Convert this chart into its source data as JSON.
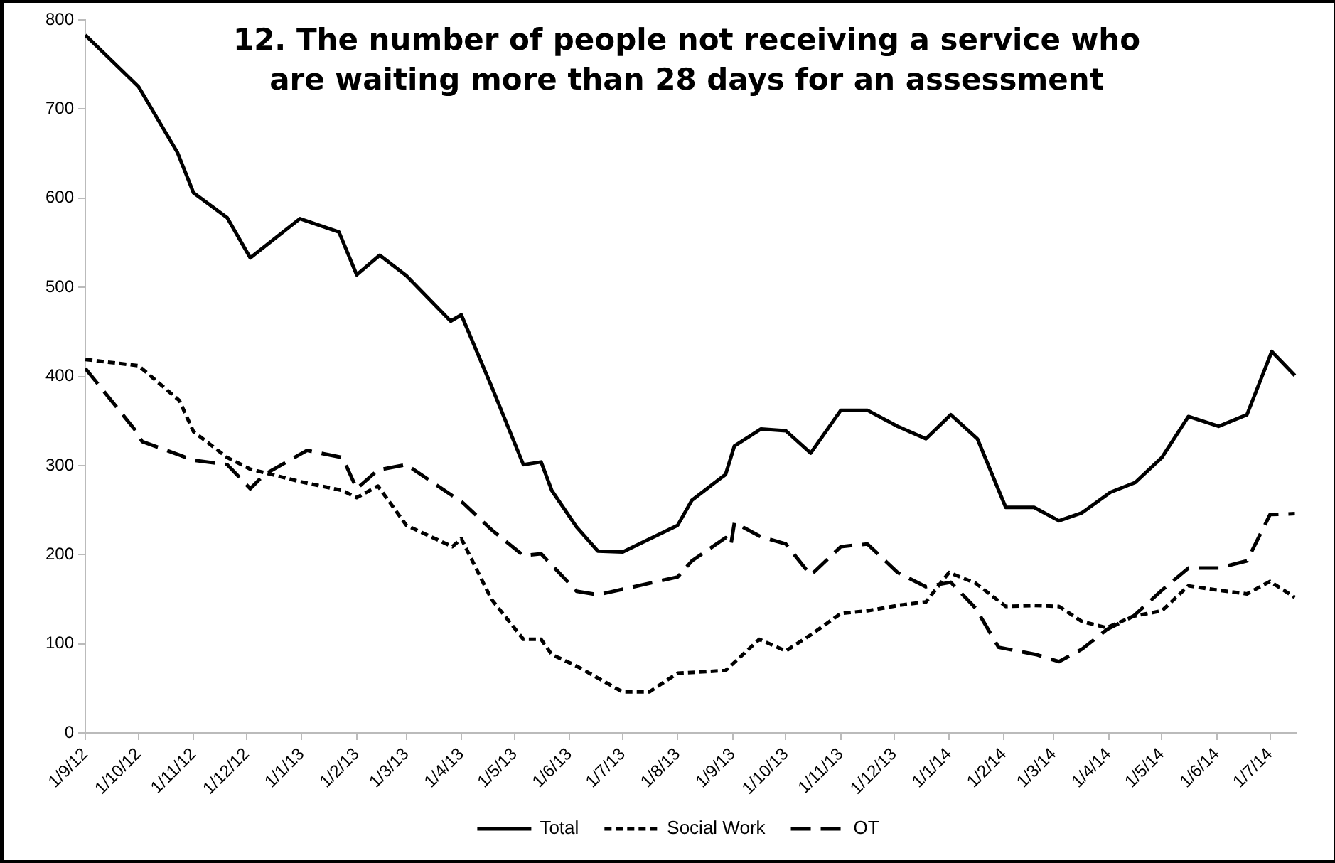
{
  "chart_data": {
    "type": "line",
    "title": "12. The number of people not receiving a service who are waiting more than 28 days for an assessment",
    "xlim": [
      "2012-09-01",
      "2014-07-16"
    ],
    "xticks": [
      {
        "value": "2012-09-01",
        "label": "1/9/12"
      },
      {
        "value": "2012-10-01",
        "label": "1/10/12"
      },
      {
        "value": "2012-11-01",
        "label": "1/11/12"
      },
      {
        "value": "2012-12-01",
        "label": "1/12/12"
      },
      {
        "value": "2013-01-01",
        "label": "1/1/13"
      },
      {
        "value": "2013-02-01",
        "label": "1/2/13"
      },
      {
        "value": "2013-03-01",
        "label": "1/3/13"
      },
      {
        "value": "2013-04-01",
        "label": "1/4/13"
      },
      {
        "value": "2013-05-01",
        "label": "1/5/13"
      },
      {
        "value": "2013-06-01",
        "label": "1/6/13"
      },
      {
        "value": "2013-07-01",
        "label": "1/7/13"
      },
      {
        "value": "2013-08-01",
        "label": "1/8/13"
      },
      {
        "value": "2013-09-01",
        "label": "1/9/13"
      },
      {
        "value": "2013-10-01",
        "label": "1/10/13"
      },
      {
        "value": "2013-11-01",
        "label": "1/11/13"
      },
      {
        "value": "2013-12-01",
        "label": "1/12/13"
      },
      {
        "value": "2014-01-01",
        "label": "1/1/14"
      },
      {
        "value": "2014-02-01",
        "label": "1/2/14"
      },
      {
        "value": "2014-03-01",
        "label": "1/3/14"
      },
      {
        "value": "2014-04-01",
        "label": "1/4/14"
      },
      {
        "value": "2014-05-01",
        "label": "1/5/14"
      },
      {
        "value": "2014-06-01",
        "label": "1/6/14"
      },
      {
        "value": "2014-07-01",
        "label": "1/7/14"
      }
    ],
    "ylim": [
      0,
      800
    ],
    "yticks": [
      0,
      100,
      200,
      300,
      400,
      500,
      600,
      700,
      800
    ],
    "grid": false,
    "legend": "bottom",
    "marker": "none",
    "series": [
      {
        "name": "Total",
        "color": "#000000",
        "line_style": "solid",
        "x": [
          "2012-09-01",
          "2012-10-01",
          "2012-10-23",
          "2012-11-01",
          "2012-11-20",
          "2012-12-03",
          "2012-12-31",
          "2013-01-22",
          "2013-02-01",
          "2013-02-14",
          "2013-03-01",
          "2013-03-26",
          "2013-04-01",
          "2013-04-18",
          "2013-05-06",
          "2013-05-16",
          "2013-05-22",
          "2013-06-05",
          "2013-06-17",
          "2013-07-01",
          "2013-08-01",
          "2013-08-09",
          "2013-08-28",
          "2013-09-02",
          "2013-09-17",
          "2013-10-01",
          "2013-10-15",
          "2013-11-01",
          "2013-11-16",
          "2013-12-03",
          "2013-12-19",
          "2014-01-02",
          "2014-01-17",
          "2014-02-02",
          "2014-02-18",
          "2014-03-04",
          "2014-03-17",
          "2014-04-02",
          "2014-04-16",
          "2014-05-01",
          "2014-05-16",
          "2014-06-02",
          "2014-06-18",
          "2014-07-02",
          "2014-07-15"
        ],
        "values": [
          783,
          725,
          651,
          606,
          578,
          533,
          577,
          562,
          514,
          536,
          513,
          462,
          469,
          389,
          301,
          304,
          272,
          231,
          204,
          203,
          233,
          261,
          290,
          322,
          341,
          339,
          314,
          362,
          362,
          344,
          330,
          357,
          330,
          253,
          253,
          238,
          247,
          270,
          281,
          309,
          355,
          344,
          357,
          428,
          401
        ]
      },
      {
        "name": "Social Work",
        "color": "#000000",
        "line_style": "dotted",
        "x": [
          "2012-09-01",
          "2012-10-01",
          "2012-10-24",
          "2012-11-01",
          "2012-11-20",
          "2012-12-03",
          "2012-12-31",
          "2013-01-24",
          "2013-02-01",
          "2013-02-13",
          "2013-03-01",
          "2013-03-27",
          "2013-04-01",
          "2013-04-18",
          "2013-05-06",
          "2013-05-16",
          "2013-05-22",
          "2013-06-05",
          "2013-07-01",
          "2013-07-16",
          "2013-08-01",
          "2013-08-28",
          "2013-09-16",
          "2013-10-01",
          "2013-10-15",
          "2013-11-01",
          "2013-11-16",
          "2013-12-03",
          "2013-12-19",
          "2014-01-01",
          "2014-01-16",
          "2014-02-02",
          "2014-02-18",
          "2014-03-04",
          "2014-03-17",
          "2014-03-31",
          "2014-04-15",
          "2014-05-01",
          "2014-05-16",
          "2014-06-02",
          "2014-06-18",
          "2014-07-01",
          "2014-07-15"
        ],
        "values": [
          419,
          412,
          373,
          338,
          309,
          296,
          282,
          272,
          264,
          277,
          233,
          209,
          218,
          150,
          105,
          105,
          88,
          75,
          46,
          46,
          67,
          70,
          105,
          92,
          110,
          134,
          137,
          143,
          147,
          180,
          168,
          142,
          143,
          142,
          125,
          118,
          131,
          137,
          165,
          160,
          156,
          170,
          152
        ]
      },
      {
        "name": "OT",
        "color": "#000000",
        "line_style": "dashed",
        "x": [
          "2012-09-01",
          "2012-09-29",
          "2012-10-03",
          "2012-11-01",
          "2012-11-20",
          "2012-12-03",
          "2012-12-11",
          "2013-01-04",
          "2013-01-24",
          "2013-02-01",
          "2013-02-13",
          "2013-03-01",
          "2013-04-02",
          "2013-04-18",
          "2013-05-06",
          "2013-05-16",
          "2013-06-05",
          "2013-06-17",
          "2013-08-01",
          "2013-08-09",
          "2013-08-28",
          "2013-08-31",
          "2013-09-02",
          "2013-09-17",
          "2013-10-01",
          "2013-10-15",
          "2013-11-01",
          "2013-11-16",
          "2013-12-03",
          "2013-12-19",
          "2014-01-02",
          "2014-01-16",
          "2014-01-29",
          "2014-02-19",
          "2014-03-04",
          "2014-03-17",
          "2014-03-31",
          "2014-04-15",
          "2014-05-01",
          "2014-05-16",
          "2014-06-02",
          "2014-06-18",
          "2014-07-01",
          "2014-07-15"
        ],
        "values": [
          409,
          340,
          327,
          306,
          301,
          274,
          290,
          317,
          309,
          274,
          295,
          301,
          258,
          228,
          199,
          201,
          159,
          155,
          175,
          193,
          219,
          211,
          236,
          220,
          212,
          177,
          209,
          212,
          180,
          164,
          169,
          140,
          96,
          88,
          80,
          94,
          116,
          131,
          160,
          185,
          185,
          193,
          245,
          246
        ]
      }
    ]
  }
}
